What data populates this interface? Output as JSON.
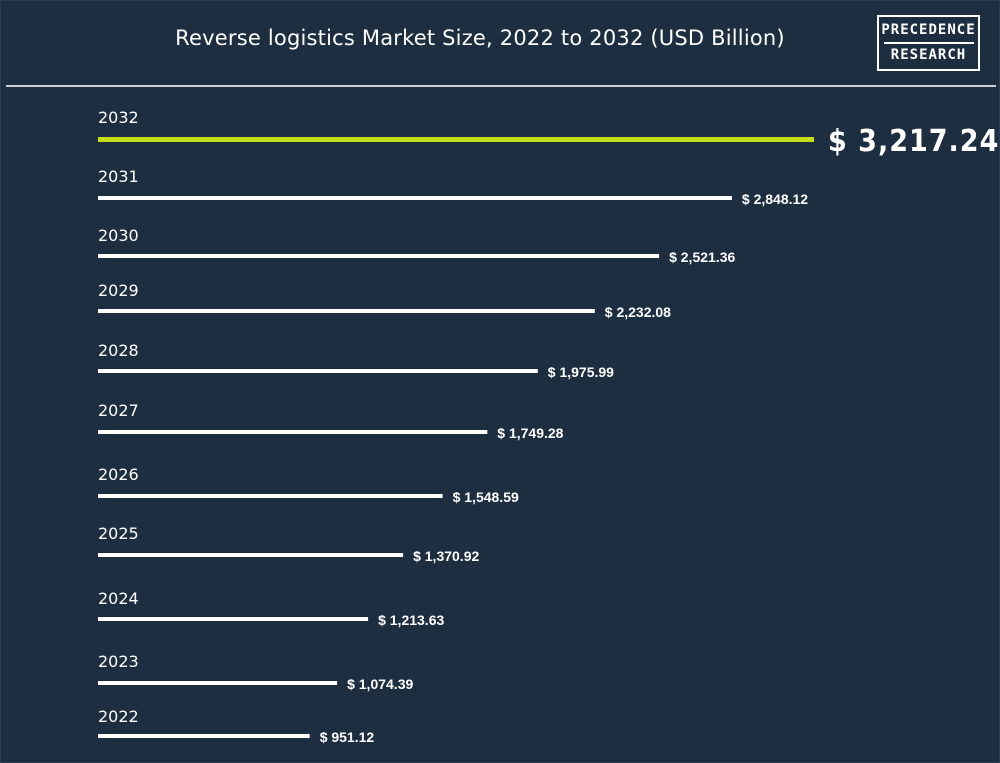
{
  "header": {
    "title": "Reverse logistics Market Size, 2022 to 2032 (USD Billion)",
    "logo_line1": "PRECEDENCE",
    "logo_line2": "RESEARCH"
  },
  "colors": {
    "background": "#1d2e40",
    "bar": "#ffffff",
    "highlight_bar": "#c4dc15",
    "text": "#ffffff"
  },
  "chart_data": {
    "type": "bar",
    "orientation": "horizontal",
    "title": "Reverse logistics Market Size, 2022 to 2032 (USD Billion)",
    "categories": [
      "2032",
      "2031",
      "2030",
      "2029",
      "2028",
      "2027",
      "2026",
      "2025",
      "2024",
      "2023",
      "2022"
    ],
    "values": [
      3217.24,
      2848.12,
      2521.36,
      2232.08,
      1975.99,
      1749.28,
      1548.59,
      1370.92,
      1213.63,
      1074.39,
      951.12
    ],
    "value_labels": [
      "$ 3,217.24",
      "$ 2,848.12",
      "$ 2,521.36",
      "$ 2,232.08",
      "$ 1,975.99",
      "$ 1,749.28",
      "$ 1,548.59",
      "$ 1,370.92",
      "$ 1,213.63",
      "$ 1,074.39",
      "$ 951.12"
    ],
    "highlight_category": "2032",
    "xlabel": "",
    "ylabel": "",
    "grid": false,
    "legend": "none"
  }
}
